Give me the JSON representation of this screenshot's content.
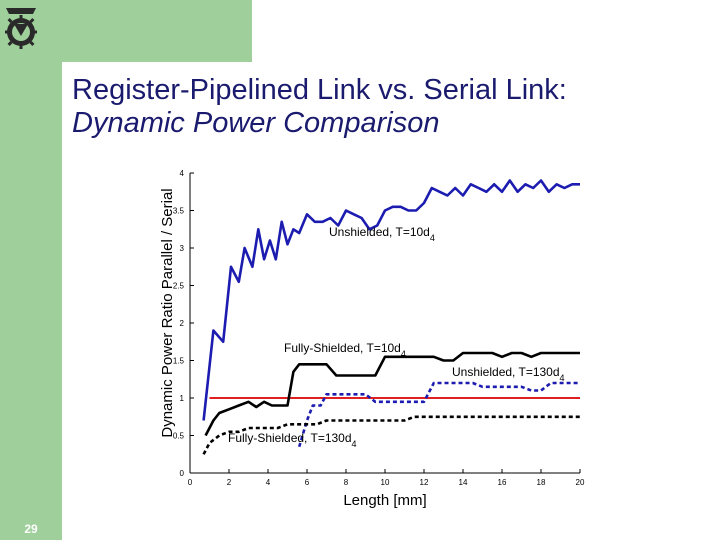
{
  "slide": {
    "title_line1": "Register-Pipelined Link vs. Serial Link:",
    "title_line2": "Dynamic Power Comparison",
    "page_number": "29",
    "logo_icon": "technion-logo-icon",
    "colors": {
      "sidebar": "#9fcf9a",
      "title": "#1a1a6e"
    }
  },
  "chart_data": {
    "type": "line",
    "title": "",
    "xlabel": "Length [mm]",
    "ylabel": "Dynamic Power Ratio Parallel / Serial",
    "xlim": [
      0,
      20
    ],
    "ylim": [
      0,
      4
    ],
    "xticks": [
      0,
      2,
      4,
      6,
      8,
      10,
      12,
      14,
      16,
      18,
      20
    ],
    "yticks": [
      0.5,
      1,
      1.5,
      2,
      2.5,
      3,
      3.5,
      4
    ],
    "grid": false,
    "reference_line": {
      "y": 1,
      "color": "#e02020"
    },
    "series": [
      {
        "name": "Unshielded, T=10d4",
        "label_main": "Unshielded, T=10d",
        "label_sub": "4",
        "color": "#1c1cb0",
        "dashed": false,
        "x": [
          0.7,
          1.2,
          1.7,
          2.1,
          2.5,
          2.8,
          3.2,
          3.5,
          3.8,
          4.1,
          4.4,
          4.7,
          5.0,
          5.3,
          5.6,
          6.0,
          6.4,
          6.8,
          7.2,
          7.6,
          8.0,
          8.4,
          8.8,
          9.2,
          9.6,
          10.0,
          10.4,
          10.8,
          11.2,
          11.6,
          12.0,
          12.4,
          12.8,
          13.2,
          13.6,
          14.0,
          14.4,
          14.8,
          15.2,
          15.6,
          16.0,
          16.4,
          16.8,
          17.2,
          17.6,
          18.0,
          18.4,
          18.8,
          19.2,
          19.6,
          20.0
        ],
        "y": [
          0.7,
          1.9,
          1.75,
          2.75,
          2.55,
          3.0,
          2.75,
          3.25,
          2.85,
          3.1,
          2.85,
          3.35,
          3.05,
          3.25,
          3.2,
          3.45,
          3.35,
          3.35,
          3.4,
          3.3,
          3.5,
          3.45,
          3.4,
          3.25,
          3.3,
          3.5,
          3.55,
          3.55,
          3.5,
          3.5,
          3.6,
          3.8,
          3.75,
          3.7,
          3.8,
          3.7,
          3.85,
          3.8,
          3.75,
          3.85,
          3.75,
          3.9,
          3.75,
          3.85,
          3.8,
          3.9,
          3.75,
          3.85,
          3.8,
          3.85,
          3.85
        ]
      },
      {
        "name": "Fully-Shielded, T=10d4",
        "label_main": "Fully-Shielded, T=10d",
        "label_sub": "4",
        "color": "#000000",
        "dashed": false,
        "x": [
          0.8,
          1.2,
          1.5,
          2.0,
          2.5,
          3.0,
          3.4,
          3.8,
          4.2,
          4.6,
          5.0,
          5.3,
          5.6,
          6.0,
          6.5,
          7.0,
          7.5,
          8.0,
          8.5,
          9.0,
          9.5,
          10.0,
          10.5,
          11.0,
          11.5,
          12.0,
          12.5,
          13.0,
          13.5,
          14.0,
          14.5,
          15.0,
          15.5,
          16.0,
          16.5,
          17.0,
          17.5,
          18.0,
          18.5,
          19.0,
          19.5,
          20.0
        ],
        "y": [
          0.5,
          0.7,
          0.8,
          0.85,
          0.9,
          0.95,
          0.88,
          0.95,
          0.9,
          0.9,
          0.9,
          1.35,
          1.45,
          1.45,
          1.45,
          1.45,
          1.3,
          1.3,
          1.3,
          1.3,
          1.3,
          1.55,
          1.55,
          1.55,
          1.55,
          1.55,
          1.55,
          1.5,
          1.5,
          1.6,
          1.6,
          1.6,
          1.6,
          1.55,
          1.6,
          1.6,
          1.55,
          1.6,
          1.6,
          1.6,
          1.6,
          1.6
        ]
      },
      {
        "name": "Unshielded, T=130d4",
        "label_main": "Unshielded, T=130d",
        "label_sub": "4",
        "color": "#1c1cb0",
        "dashed": true,
        "x": [
          5.6,
          6.0,
          6.3,
          6.7,
          7.0,
          7.5,
          8.0,
          8.5,
          9.0,
          9.5,
          10.0,
          10.5,
          11.0,
          11.5,
          12.0,
          12.5,
          13.0,
          13.5,
          14.0,
          14.5,
          15.0,
          15.5,
          16.0,
          16.5,
          17.0,
          17.5,
          18.0,
          18.5,
          19.0,
          19.5,
          20.0
        ],
        "y": [
          0.35,
          0.7,
          0.9,
          0.9,
          1.05,
          1.05,
          1.05,
          1.05,
          1.05,
          0.95,
          0.95,
          0.95,
          0.95,
          0.95,
          0.95,
          1.2,
          1.2,
          1.2,
          1.2,
          1.2,
          1.15,
          1.15,
          1.15,
          1.15,
          1.15,
          1.1,
          1.1,
          1.2,
          1.2,
          1.2,
          1.2
        ]
      },
      {
        "name": "Fully-Shielded, T=130d4",
        "label_main": "Fully-Shielded, T=130d",
        "label_sub": "4",
        "color": "#000000",
        "dashed": true,
        "x": [
          0.7,
          1.0,
          1.5,
          2.0,
          2.5,
          3.0,
          3.5,
          4.0,
          4.5,
          5.0,
          5.5,
          6.0,
          6.5,
          7.0,
          7.5,
          8.0,
          8.5,
          9.0,
          9.5,
          10.0,
          10.5,
          11.0,
          11.5,
          12.0,
          12.5,
          13.0,
          13.5,
          14.0,
          14.5,
          15.0,
          15.5,
          16.0,
          16.5,
          17.0,
          17.5,
          18.0,
          18.5,
          19.0,
          19.5,
          20.0
        ],
        "y": [
          0.25,
          0.4,
          0.5,
          0.55,
          0.55,
          0.6,
          0.6,
          0.6,
          0.6,
          0.65,
          0.65,
          0.65,
          0.65,
          0.7,
          0.7,
          0.7,
          0.7,
          0.7,
          0.7,
          0.7,
          0.7,
          0.7,
          0.75,
          0.75,
          0.75,
          0.75,
          0.75,
          0.75,
          0.75,
          0.75,
          0.75,
          0.75,
          0.75,
          0.75,
          0.75,
          0.75,
          0.75,
          0.75,
          0.75,
          0.75
        ]
      }
    ]
  }
}
